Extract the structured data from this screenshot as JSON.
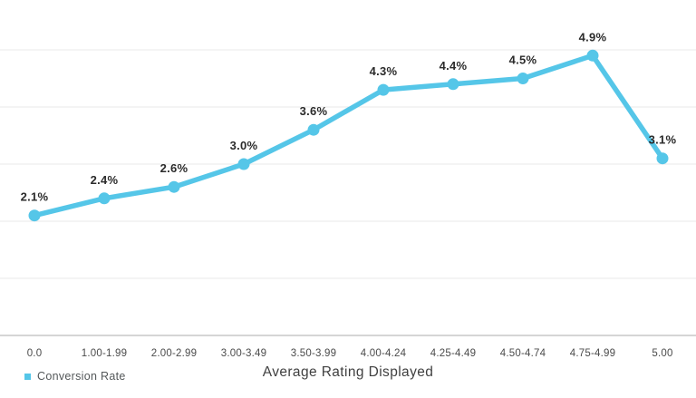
{
  "chart_data": {
    "type": "line",
    "title": "",
    "categories": [
      "0.0",
      "1.00-1.99",
      "2.00-2.99",
      "3.00-3.49",
      "3.50-3.99",
      "4.00-4.24",
      "4.25-4.49",
      "4.50-4.74",
      "4.75-4.99",
      "5.00"
    ],
    "series": [
      {
        "name": "Conversion Rate",
        "values": [
          2.1,
          2.4,
          2.6,
          3.0,
          3.6,
          4.3,
          4.4,
          4.5,
          4.9,
          3.1
        ],
        "color": "#55C6E8"
      }
    ],
    "data_labels": [
      "2.1%",
      "2.4%",
      "2.6%",
      "3.0%",
      "3.6%",
      "4.3%",
      "4.4%",
      "4.5%",
      "4.9%",
      "3.1%"
    ],
    "xlabel": "Average Rating Displayed",
    "ylabel": "",
    "ylim": [
      0,
      6
    ],
    "gridline_interval": 1,
    "grid": "horizontal",
    "y_tick_labels_visible": false,
    "legend_position": "bottom-left"
  },
  "legend": {
    "label": "Conversion Rate"
  },
  "colors": {
    "line": "#55C6E8",
    "marker": "#55C6E8",
    "gridline": "#e8e8e8",
    "axis_line": "#d5d5d5",
    "data_label": "#2b2b2b",
    "tick_label": "#4b4b4b",
    "axis_title": "#404040",
    "legend_text": "#54585a",
    "background": "#ffffff"
  }
}
